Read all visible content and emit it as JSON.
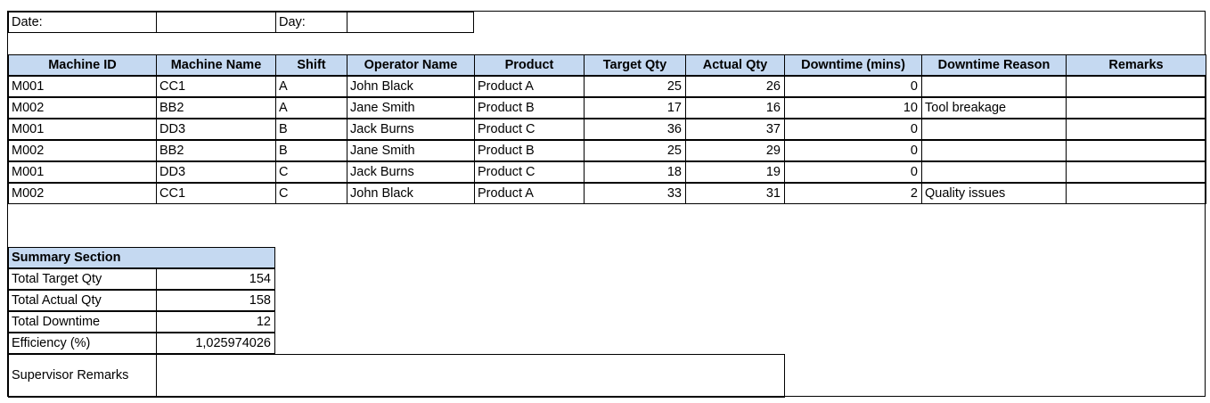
{
  "header": {
    "date_label": "Date:",
    "date_value": "",
    "day_label": "Day:",
    "day_value": ""
  },
  "table": {
    "columns": [
      "Machine ID",
      "Machine Name",
      "Shift",
      "Operator Name",
      "Product",
      "Target Qty",
      "Actual Qty",
      "Downtime (mins)",
      "Downtime Reason",
      "Remarks"
    ],
    "rows": [
      [
        "M001",
        "CC1",
        "A",
        "John Black",
        "Product A",
        "25",
        "26",
        "0",
        "",
        ""
      ],
      [
        "M002",
        "BB2",
        "A",
        "Jane Smith",
        "Product B",
        "17",
        "16",
        "10",
        "Tool breakage",
        ""
      ],
      [
        "M001",
        "DD3",
        "B",
        "Jack Burns",
        "Product C",
        "36",
        "37",
        "0",
        "",
        ""
      ],
      [
        "M002",
        "BB2",
        "B",
        "Jane Smith",
        "Product B",
        "25",
        "29",
        "0",
        "",
        ""
      ],
      [
        "M001",
        "DD3",
        "C",
        "Jack Burns",
        "Product C",
        "18",
        "19",
        "0",
        "",
        ""
      ],
      [
        "M002",
        "CC1",
        "C",
        "John Black",
        "Product A",
        "33",
        "31",
        "2",
        "Quality issues",
        ""
      ]
    ]
  },
  "summary": {
    "title": "Summary Section",
    "items": [
      {
        "label": "Total Target Qty",
        "value": "154"
      },
      {
        "label": "Total Actual Qty",
        "value": "158"
      },
      {
        "label": "Total Downtime",
        "value": "12"
      },
      {
        "label": "Efficiency (%)",
        "value": "1,025974026"
      }
    ],
    "supervisor_label": "Supervisor Remarks",
    "supervisor_value": ""
  },
  "colors": {
    "header_fill": "#c5d9f1",
    "border": "#000000"
  }
}
